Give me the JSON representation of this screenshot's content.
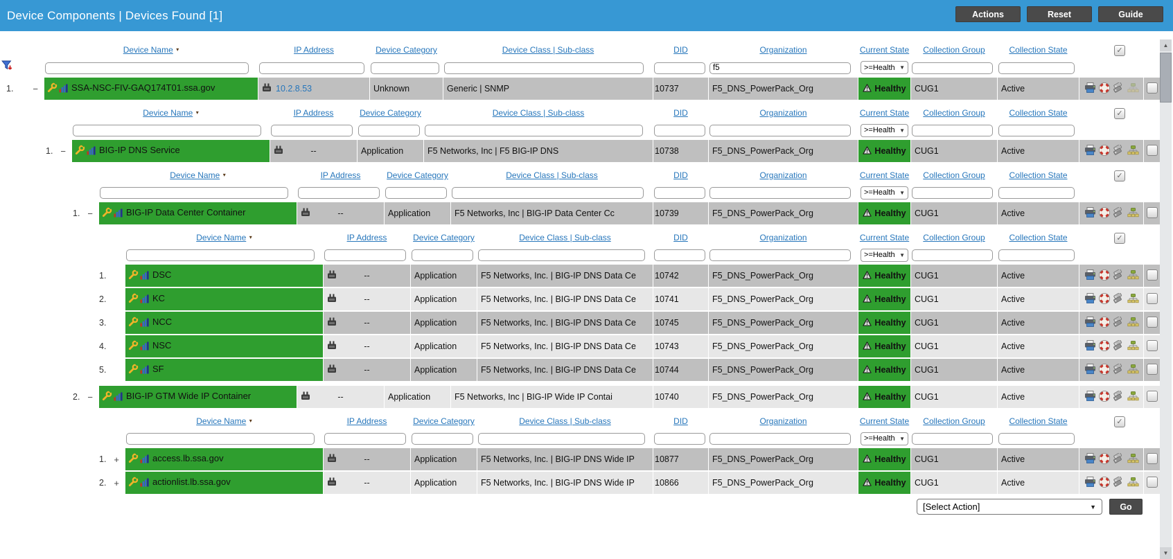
{
  "titlebar": {
    "title": "Device Components | Devices Found [1]",
    "buttons": [
      {
        "label": "Actions"
      },
      {
        "label": "Reset"
      },
      {
        "label": "Guide"
      }
    ]
  },
  "columns": [
    {
      "key": "device_name",
      "label": "Device Name",
      "sort_indicator": "desc"
    },
    {
      "key": "ip_address",
      "label": "IP Address"
    },
    {
      "key": "device_category",
      "label": "Device Category"
    },
    {
      "key": "device_class",
      "label": "Device Class | Sub-class"
    },
    {
      "key": "did",
      "label": "DID"
    },
    {
      "key": "organization",
      "label": "Organization"
    },
    {
      "key": "current_state",
      "label": "Current State"
    },
    {
      "key": "collection_group",
      "label": "Collection Group"
    },
    {
      "key": "collection_state",
      "label": "Collection State"
    }
  ],
  "sections": [
    {
      "indent": 0,
      "header": true,
      "header_checkbox_checked": true,
      "show_funnel": true,
      "filter": {
        "organization": "f5",
        "current_state": ">=Health"
      },
      "rows": [
        {
          "num": "1.",
          "expand": "−",
          "name": "SSA-NSC-FIV-GAQ174T01.ssa.gov",
          "ip": "10.2.8.53",
          "ip_link": true,
          "category": "Unknown",
          "device_class": "Generic | SNMP",
          "did": "10737",
          "organization": "F5_DNS_PowerPack_Org",
          "current_state": "Healthy",
          "collection_group": "CUG1",
          "collection_state": "Active",
          "shade": "dark",
          "topology_faded": true
        }
      ]
    },
    {
      "indent": 1,
      "header": true,
      "header_checkbox_checked": true,
      "show_funnel": false,
      "filter": {
        "current_state": ">=Health"
      },
      "rows": [
        {
          "num": "1.",
          "expand": "−",
          "name": "BIG-IP DNS Service",
          "ip": "--",
          "ip_link": false,
          "category": "Application",
          "device_class": "F5 Networks, Inc | F5 BIG-IP DNS",
          "did": "10738",
          "organization": "F5_DNS_PowerPack_Org",
          "current_state": "Healthy",
          "collection_group": "CUG1",
          "collection_state": "Active",
          "shade": "dark",
          "topology_faded": false
        }
      ]
    },
    {
      "indent": 2,
      "header": true,
      "header_checkbox_checked": true,
      "show_funnel": false,
      "filter": {
        "current_state": ">=Health"
      },
      "rows": [
        {
          "num": "1.",
          "expand": "−",
          "name": "BIG-IP Data Center Container",
          "ip": "--",
          "ip_link": false,
          "category": "Application",
          "device_class": "F5 Networks, Inc | BIG-IP Data Center Cc",
          "did": "10739",
          "organization": "F5_DNS_PowerPack_Org",
          "current_state": "Healthy",
          "collection_group": "CUG1",
          "collection_state": "Active",
          "shade": "dark",
          "topology_faded": false
        }
      ]
    },
    {
      "indent": 3,
      "header": true,
      "header_checkbox_checked": true,
      "show_funnel": false,
      "filter": {
        "current_state": ">=Health"
      },
      "rows": [
        {
          "num": "1.",
          "expand": "",
          "name": "DSC",
          "ip": "--",
          "ip_link": false,
          "category": "Application",
          "device_class": "F5 Networks, Inc. | BIG-IP DNS Data Ce",
          "did": "10742",
          "organization": "F5_DNS_PowerPack_Org",
          "current_state": "Healthy",
          "collection_group": "CUG1",
          "collection_state": "Active",
          "shade": "dark",
          "topology_faded": false
        },
        {
          "num": "2.",
          "expand": "",
          "name": "KC",
          "ip": "--",
          "ip_link": false,
          "category": "Application",
          "device_class": "F5 Networks, Inc. | BIG-IP DNS Data Ce",
          "did": "10741",
          "organization": "F5_DNS_PowerPack_Org",
          "current_state": "Healthy",
          "collection_group": "CUG1",
          "collection_state": "Active",
          "shade": "light",
          "topology_faded": false
        },
        {
          "num": "3.",
          "expand": "",
          "name": "NCC",
          "ip": "--",
          "ip_link": false,
          "category": "Application",
          "device_class": "F5 Networks, Inc. | BIG-IP DNS Data Ce",
          "did": "10745",
          "organization": "F5_DNS_PowerPack_Org",
          "current_state": "Healthy",
          "collection_group": "CUG1",
          "collection_state": "Active",
          "shade": "dark",
          "topology_faded": false
        },
        {
          "num": "4.",
          "expand": "",
          "name": "NSC",
          "ip": "--",
          "ip_link": false,
          "category": "Application",
          "device_class": "F5 Networks, Inc. | BIG-IP DNS Data Ce",
          "did": "10743",
          "organization": "F5_DNS_PowerPack_Org",
          "current_state": "Healthy",
          "collection_group": "CUG1",
          "collection_state": "Active",
          "shade": "light",
          "topology_faded": false
        },
        {
          "num": "5.",
          "expand": "",
          "name": "SF",
          "ip": "--",
          "ip_link": false,
          "category": "Application",
          "device_class": "F5 Networks, Inc. | BIG-IP DNS Data Ce",
          "did": "10744",
          "organization": "F5_DNS_PowerPack_Org",
          "current_state": "Healthy",
          "collection_group": "CUG1",
          "collection_state": "Active",
          "shade": "dark",
          "topology_faded": false
        }
      ]
    },
    {
      "indent": 2,
      "header": false,
      "show_funnel": false,
      "filter": {},
      "rows": [
        {
          "num": "2.",
          "expand": "−",
          "name": "BIG-IP GTM Wide IP Container",
          "ip": "--",
          "ip_link": false,
          "category": "Application",
          "device_class": "F5 Networks, Inc | BIG-IP Wide IP Contai",
          "did": "10740",
          "organization": "F5_DNS_PowerPack_Org",
          "current_state": "Healthy",
          "collection_group": "CUG1",
          "collection_state": "Active",
          "shade": "light",
          "topology_faded": false
        }
      ]
    },
    {
      "indent": 3,
      "header": true,
      "header_checkbox_checked": true,
      "show_funnel": false,
      "filter": {
        "current_state": ">=Health"
      },
      "rows": [
        {
          "num": "1.",
          "expand": "+",
          "name": "access.lb.ssa.gov",
          "ip": "--",
          "ip_link": false,
          "category": "Application",
          "device_class": "F5 Networks, Inc. | BIG-IP DNS Wide IP",
          "did": "10877",
          "organization": "F5_DNS_PowerPack_Org",
          "current_state": "Healthy",
          "collection_group": "CUG1",
          "collection_state": "Active",
          "shade": "dark",
          "topology_faded": false
        },
        {
          "num": "2.",
          "expand": "+",
          "name": "actionlist.lb.ssa.gov",
          "ip": "--",
          "ip_link": false,
          "category": "Application",
          "device_class": "F5 Networks, Inc. | BIG-IP DNS Wide IP",
          "did": "10866",
          "organization": "F5_DNS_PowerPack_Org",
          "current_state": "Healthy",
          "collection_group": "CUG1",
          "collection_state": "Active",
          "shade": "light",
          "topology_faded": false
        }
      ]
    }
  ],
  "action_bar": {
    "select_value": "[Select Action]",
    "go_label": "Go"
  },
  "icons": {
    "filter_funnel": "funnel-icon",
    "device_name_cell": [
      "wrench-icon",
      "bar-graph-icon"
    ],
    "ip_cell": "network-interface-icon",
    "state_badge": "warning-triangle-icon",
    "row_actions": [
      "printer-icon",
      "lifering-icon",
      "tags-icon",
      "topology-icon"
    ],
    "scrollbar": [
      "arrow-up-icon",
      "arrow-down-icon"
    ]
  },
  "colors": {
    "titlebar_bg": "#3798d4",
    "device_name_bg": "#2f9e2f",
    "healthy_bg": "#2f9e2f",
    "row_dark": "#bfbfbf",
    "row_light": "#e7e7e7",
    "header_link": "#2676bb",
    "ip_link": "#2676bb",
    "button_bg": "#4a4a4a"
  }
}
